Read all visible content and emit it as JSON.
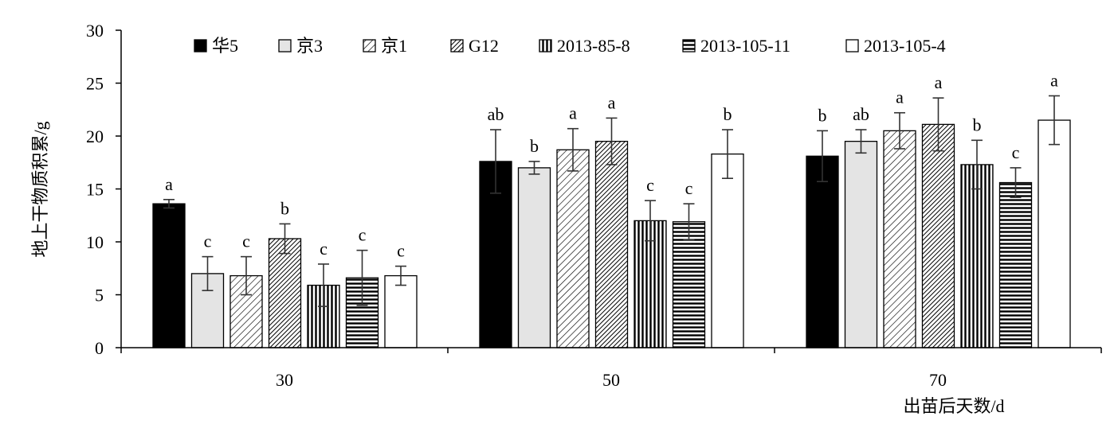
{
  "chart_data": {
    "type": "bar",
    "title": "",
    "xlabel": "出苗后天数/d",
    "ylabel": "地上干物质积累/g",
    "ylim": [
      0,
      30
    ],
    "yticks": [
      0,
      5,
      10,
      15,
      20,
      25,
      30
    ],
    "categories": [
      "30",
      "50",
      "70"
    ],
    "legend_position": "top",
    "grid": false,
    "series": [
      {
        "name": "华5",
        "pattern": "solid-black",
        "values": [
          13.6,
          17.6,
          18.1
        ],
        "errors": [
          0.4,
          3.0,
          2.4
        ],
        "letters": [
          "a",
          "ab",
          "b"
        ]
      },
      {
        "name": "京3",
        "pattern": "light-gray",
        "values": [
          7.0,
          17.0,
          19.5
        ],
        "errors": [
          1.6,
          0.6,
          1.1
        ],
        "letters": [
          "c",
          "b",
          "ab"
        ]
      },
      {
        "name": "京1",
        "pattern": "thin-diagonal",
        "values": [
          6.8,
          18.7,
          20.5
        ],
        "errors": [
          1.8,
          2.0,
          1.7
        ],
        "letters": [
          "c",
          "a",
          "a"
        ]
      },
      {
        "name": "G12",
        "pattern": "dense-diagonal",
        "values": [
          10.3,
          19.5,
          21.1
        ],
        "errors": [
          1.4,
          2.2,
          2.5
        ],
        "letters": [
          "b",
          "a",
          "a"
        ]
      },
      {
        "name": "2013-85-8",
        "pattern": "vertical-lines",
        "values": [
          5.9,
          12.0,
          17.3
        ],
        "errors": [
          2.0,
          1.9,
          2.3
        ],
        "letters": [
          "c",
          "c",
          "b"
        ]
      },
      {
        "name": "2013-105-11",
        "pattern": "horizontal-lines",
        "values": [
          6.6,
          11.9,
          15.6
        ],
        "errors": [
          2.6,
          1.7,
          1.4
        ],
        "letters": [
          "c",
          "c",
          "c"
        ]
      },
      {
        "name": "2013-105-4",
        "pattern": "white",
        "values": [
          6.8,
          18.3,
          21.5
        ],
        "errors": [
          0.9,
          2.3,
          2.3
        ],
        "letters": [
          "c",
          "b",
          "a"
        ]
      }
    ]
  }
}
